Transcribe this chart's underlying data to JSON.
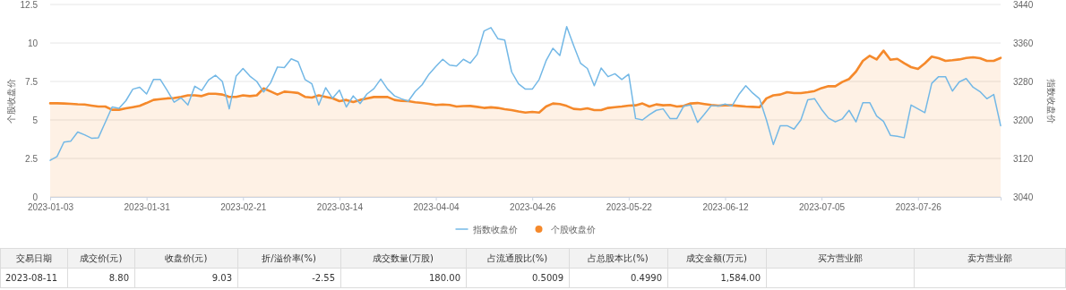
{
  "chart_data": [
    {
      "type": "line",
      "ylabel": "个股收盘价",
      "y2label": "指数收盘价",
      "categories": [
        "2023-01-03",
        null,
        null,
        null,
        null,
        null,
        null,
        null,
        null,
        null,
        null,
        null,
        null,
        null,
        "2023-01-31",
        null,
        null,
        null,
        null,
        null,
        null,
        null,
        null,
        null,
        null,
        null,
        null,
        null,
        "2023-02-21",
        null,
        null,
        null,
        null,
        null,
        null,
        null,
        null,
        null,
        null,
        null,
        null,
        null,
        "2023-03-14",
        null,
        null,
        null,
        null,
        null,
        null,
        null,
        null,
        null,
        null,
        null,
        null,
        null,
        "2023-04-04",
        null,
        null,
        null,
        null,
        null,
        null,
        null,
        null,
        null,
        null,
        null,
        null,
        null,
        "2023-04-26",
        null,
        null,
        null,
        null,
        null,
        null,
        null,
        null,
        null,
        null,
        null,
        null,
        null,
        "2023-05-22",
        null,
        null,
        null,
        null,
        null,
        null,
        null,
        null,
        null,
        null,
        null,
        null,
        null,
        "2023-06-12",
        null,
        null,
        null,
        null,
        null,
        null,
        null,
        null,
        null,
        null,
        null,
        null,
        null,
        "2023-07-05",
        null,
        null,
        null,
        null,
        null,
        null,
        null,
        null,
        null,
        null,
        null,
        null,
        null,
        "2023-07-26",
        null,
        null,
        null,
        null,
        null,
        null,
        null,
        null,
        null,
        null,
        null,
        null
      ],
      "series": [
        {
          "name": "指数收盘价",
          "type": "line",
          "axis": "y2",
          "color": "#73b8e6",
          "values": [
            3116,
            3124,
            3154,
            3156,
            3175,
            3169,
            3162,
            3163,
            3195,
            3227,
            3224,
            3240,
            3264,
            3268,
            3254,
            3284,
            3284,
            3261,
            3237,
            3246,
            3231,
            3270,
            3261,
            3283,
            3293,
            3280,
            3223,
            3291,
            3307,
            3291,
            3280,
            3258,
            3277,
            3310,
            3309,
            3327,
            3321,
            3284,
            3275,
            3231,
            3267,
            3245,
            3262,
            3227,
            3250,
            3234,
            3254,
            3265,
            3285,
            3264,
            3250,
            3244,
            3239,
            3259,
            3273,
            3295,
            3311,
            3326,
            3314,
            3312,
            3326,
            3318,
            3336,
            3385,
            3392,
            3369,
            3366,
            3300,
            3275,
            3264,
            3264,
            3284,
            3323,
            3349,
            3334,
            3394,
            3355,
            3318,
            3307,
            3271,
            3308,
            3290,
            3296,
            3284,
            3295,
            3203,
            3200,
            3211,
            3220,
            3223,
            3203,
            3203,
            3229,
            3231,
            3195,
            3212,
            3230,
            3229,
            3233,
            3229,
            3253,
            3271,
            3256,
            3244,
            3200,
            3149,
            3188,
            3188,
            3181,
            3200,
            3242,
            3244,
            3222,
            3204,
            3196,
            3202,
            3220,
            3196,
            3236,
            3236,
            3208,
            3197,
            3168,
            3166,
            3163,
            3231,
            3223,
            3215,
            3276,
            3290,
            3290,
            3260,
            3279,
            3286,
            3268,
            3259,
            3244,
            3253,
            3188
          ]
        },
        {
          "name": "个股收盘价",
          "type": "area",
          "color": "#f5892b",
          "values": [
            6.08,
            6.08,
            6.07,
            6.05,
            6.02,
            6.0,
            5.93,
            5.87,
            5.87,
            5.66,
            5.66,
            5.75,
            5.83,
            5.92,
            6.1,
            6.3,
            6.35,
            6.4,
            6.42,
            6.5,
            6.6,
            6.6,
            6.55,
            6.7,
            6.7,
            6.65,
            6.5,
            6.5,
            6.6,
            6.55,
            6.6,
            7.05,
            6.85,
            6.65,
            6.84,
            6.8,
            6.75,
            6.5,
            6.45,
            6.6,
            6.5,
            6.41,
            6.22,
            6.3,
            6.16,
            6.3,
            6.4,
            6.49,
            6.5,
            6.49,
            6.3,
            6.24,
            6.22,
            6.15,
            6.1,
            6.05,
            5.97,
            6.0,
            5.97,
            5.87,
            5.9,
            5.91,
            5.85,
            5.78,
            5.82,
            5.78,
            5.7,
            5.64,
            5.55,
            5.48,
            5.52,
            5.48,
            5.87,
            6.07,
            6.03,
            5.91,
            5.72,
            5.68,
            5.76,
            5.64,
            5.64,
            5.78,
            5.83,
            5.87,
            5.93,
            5.95,
            6.07,
            5.87,
            6.01,
            5.95,
            5.97,
            5.87,
            5.91,
            6.07,
            6.1,
            6.03,
            5.97,
            5.93,
            5.95,
            5.95,
            5.91,
            5.87,
            5.85,
            5.83,
            6.4,
            6.6,
            6.65,
            6.8,
            6.74,
            6.74,
            6.8,
            6.88,
            7.07,
            7.19,
            7.19,
            7.46,
            7.66,
            8.14,
            8.84,
            9.17,
            8.93,
            9.5,
            8.91,
            8.97,
            8.68,
            8.43,
            8.31,
            8.68,
            9.11,
            9.01,
            8.84,
            8.88,
            8.93,
            9.03,
            9.07,
            9.01,
            8.84,
            8.84,
            9.03
          ]
        }
      ],
      "ylim": [
        0,
        12.5
      ],
      "yticks": [
        0,
        2.5,
        5,
        7.5,
        10,
        12.5
      ],
      "y2lim": [
        3040,
        3440
      ],
      "y2ticks": [
        3040,
        3120,
        3200,
        3280,
        3360,
        3440
      ],
      "grid": "y",
      "legend": "bottom"
    },
    {
      "type": "other",
      "categories": [
        "交易日期",
        "成交价(元)",
        "收盘价(元)",
        "折/溢价率(%)",
        "成交数量(万股)",
        "占流通股比(%)",
        "占总股本比(%)",
        "成交金额(万元)",
        "买方营业部",
        "卖方营业部"
      ],
      "value_labels": [
        "2023-08-11",
        "8.80",
        "9.03",
        "-2.55",
        "180.00",
        "0.5009",
        "0.4990",
        "1,584.00",
        null,
        null
      ]
    }
  ]
}
